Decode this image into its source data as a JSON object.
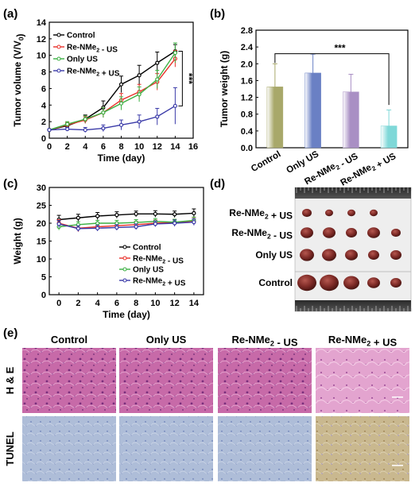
{
  "panel_labels": {
    "a": "(a)",
    "b": "(b)",
    "c": "(c)",
    "d": "(d)",
    "e": "(e)"
  },
  "colors": {
    "control": "#000000",
    "re_us": "#e8312a",
    "only_us": "#3cb043",
    "re_plus_us": "#3a3aa8"
  },
  "chart_data": [
    {
      "id": "a",
      "type": "line",
      "xlabel": "Time (day)",
      "ylabel": "Tumor volume (V/V0)",
      "xlim": [
        0,
        16
      ],
      "ylim": [
        0,
        14
      ],
      "x_ticks": [
        0,
        2,
        4,
        6,
        8,
        10,
        12,
        14,
        16
      ],
      "y_ticks": [
        0,
        2,
        4,
        6,
        8,
        10,
        12,
        14
      ],
      "x": [
        0,
        2,
        4,
        6,
        8,
        10,
        12,
        14
      ],
      "legend": "top-left",
      "significance": "***",
      "series": [
        {
          "name": "Control",
          "color": "#000000",
          "values": [
            1.0,
            1.5,
            2.3,
            3.7,
            6.5,
            7.6,
            9.1,
            10.5
          ],
          "err": [
            0.1,
            0.3,
            0.5,
            0.8,
            1.0,
            1.2,
            1.3,
            0.8
          ]
        },
        {
          "name": "Re-NMe2 - US",
          "color": "#e8312a",
          "values": [
            1.0,
            1.6,
            2.2,
            3.1,
            4.6,
            5.6,
            6.8,
            9.6
          ],
          "err": [
            0.1,
            0.3,
            0.4,
            0.6,
            0.8,
            0.9,
            1.0,
            1.0
          ]
        },
        {
          "name": "Only US",
          "color": "#3cb043",
          "values": [
            1.0,
            1.7,
            2.3,
            3.1,
            4.2,
            5.3,
            7.1,
            10.3
          ],
          "err": [
            0.1,
            0.3,
            0.4,
            0.6,
            0.8,
            0.9,
            1.1,
            1.2
          ]
        },
        {
          "name": "Re-NMe2 + US",
          "color": "#3a3aa8",
          "values": [
            1.0,
            1.1,
            1.0,
            1.2,
            1.6,
            2.0,
            2.6,
            3.9
          ],
          "err": [
            0.1,
            0.2,
            0.3,
            0.4,
            0.6,
            0.8,
            1.0,
            2.2
          ]
        }
      ]
    },
    {
      "id": "b",
      "type": "bar",
      "ylabel": "Tumor weight (g)",
      "ylim": [
        0,
        2.8
      ],
      "y_ticks": [
        0.0,
        0.4,
        0.8,
        1.2,
        1.6,
        2.0,
        2.4,
        2.8
      ],
      "categories": [
        "Control",
        "Only US",
        "Re-NMe2 - US",
        "Re-NMe2 + US"
      ],
      "values": [
        1.45,
        1.78,
        1.33,
        0.52
      ],
      "err": [
        0.55,
        0.45,
        0.42,
        0.38
      ],
      "bar_colors": [
        "#a8a86a",
        "#6a80c4",
        "#a98fc4",
        "#7fd8d8"
      ],
      "significance": "***"
    },
    {
      "id": "c",
      "type": "line",
      "xlabel": "Time (day)",
      "ylabel": "Weight (g)",
      "xlim": [
        -1,
        15
      ],
      "ylim": [
        0,
        30
      ],
      "x_ticks": [
        0,
        2,
        4,
        6,
        8,
        10,
        12,
        14
      ],
      "y_ticks": [
        0,
        5,
        10,
        15,
        20,
        25,
        30
      ],
      "x": [
        0,
        2,
        4,
        6,
        8,
        10,
        12,
        14
      ],
      "legend": "bottom-right",
      "series": [
        {
          "name": "Control",
          "color": "#000000",
          "values": [
            21.0,
            21.5,
            22.0,
            22.3,
            22.6,
            22.6,
            22.5,
            22.8
          ],
          "err": [
            1.2,
            1.0,
            1.0,
            0.9,
            0.8,
            0.9,
            0.9,
            1.2
          ]
        },
        {
          "name": "Re-NMe2 - US",
          "color": "#e8312a",
          "values": [
            20.0,
            18.6,
            19.0,
            19.3,
            19.6,
            20.0,
            20.2,
            20.6
          ],
          "err": [
            1.0,
            1.0,
            0.9,
            0.9,
            0.9,
            0.9,
            0.9,
            1.0
          ]
        },
        {
          "name": "Only US",
          "color": "#3cb043",
          "values": [
            19.0,
            19.6,
            20.0,
            20.0,
            20.2,
            20.5,
            20.3,
            20.8
          ],
          "err": [
            0.9,
            0.8,
            0.8,
            0.8,
            0.8,
            0.8,
            0.8,
            0.9
          ]
        },
        {
          "name": "Re-NMe2 + US",
          "color": "#3a3aa8",
          "values": [
            19.8,
            18.5,
            18.6,
            18.8,
            19.0,
            19.8,
            20.0,
            20.3
          ],
          "err": [
            1.0,
            0.8,
            0.8,
            0.8,
            0.8,
            0.8,
            0.9,
            0.9
          ]
        }
      ]
    }
  ],
  "panel_d": {
    "rows": [
      "Re-NMe2 + US",
      "Re-NMe2 - US",
      "Only US",
      "Control"
    ],
    "counts": [
      4,
      5,
      5,
      5
    ]
  },
  "panel_e": {
    "columns": [
      "Control",
      "Only US",
      "Re-NMe2 - US",
      "Re-NMe2 + US"
    ],
    "rows": [
      "H & E",
      "TUNEL"
    ]
  }
}
